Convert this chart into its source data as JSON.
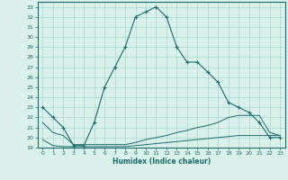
{
  "xlabel": "Humidex (Indice chaleur)",
  "x_hours": [
    0,
    1,
    2,
    3,
    4,
    5,
    6,
    7,
    8,
    9,
    10,
    11,
    12,
    13,
    14,
    15,
    16,
    17,
    18,
    19,
    20,
    21,
    22,
    23
  ],
  "line1_y": [
    23,
    22,
    21,
    19.2,
    19.2,
    21.5,
    25,
    27,
    29,
    32,
    32.5,
    33,
    32,
    29,
    27.5,
    27.5,
    26.5,
    25.5,
    23.5,
    23,
    22.5,
    21.5,
    20,
    20
  ],
  "line2_y": [
    19.8,
    19.2,
    19.1,
    19.1,
    19.1,
    19.1,
    19.1,
    19.1,
    19.1,
    19.2,
    19.3,
    19.4,
    19.5,
    19.6,
    19.7,
    19.8,
    19.9,
    20.0,
    20.1,
    20.2,
    20.2,
    20.2,
    20.2,
    20.2
  ],
  "line3_y": [
    21.5,
    20.5,
    20.2,
    19.3,
    19.3,
    19.3,
    19.3,
    19.3,
    19.3,
    19.5,
    19.8,
    20.0,
    20.2,
    20.5,
    20.7,
    21.0,
    21.2,
    21.5,
    22.0,
    22.2,
    22.2,
    22.2,
    20.5,
    20.2
  ],
  "ylim": [
    19,
    33.5
  ],
  "xlim": [
    -0.5,
    23.5
  ],
  "line_color": "#1a6b6b",
  "bg_color": "#daf0eb",
  "grid_color": "#a8d8ce",
  "yticks": [
    19,
    20,
    21,
    22,
    23,
    24,
    25,
    26,
    27,
    28,
    29,
    30,
    31,
    32,
    33
  ],
  "xticks": [
    0,
    1,
    2,
    3,
    4,
    5,
    6,
    7,
    8,
    9,
    10,
    11,
    12,
    13,
    14,
    15,
    16,
    17,
    18,
    19,
    20,
    21,
    22,
    23
  ]
}
